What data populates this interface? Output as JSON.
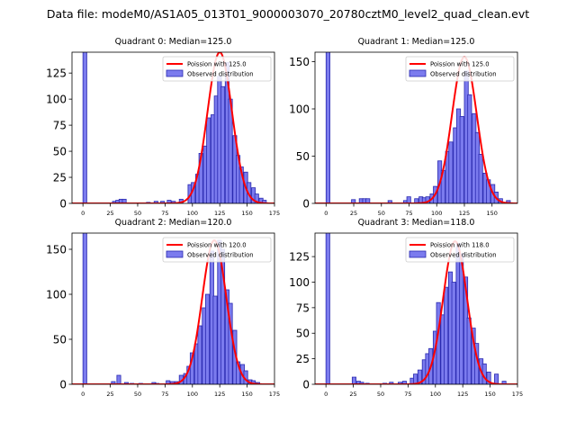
{
  "suptitle": "Data file: modeM0/AS1A05_013T01_9000003070_20780cztM0_level2_quad_clean.evt",
  "colors": {
    "line": "#ff0000",
    "bar_fill": "#7b7bee",
    "bar_edge": "#2a2ab0",
    "axis": "#000000"
  },
  "chart_data": [
    {
      "type": "bar",
      "title": "Quadrant 0: Median=125.0",
      "xlim": [
        -10,
        175
      ],
      "ylim": [
        0,
        145
      ],
      "xticks": [
        0,
        25,
        50,
        75,
        100,
        125,
        150,
        175
      ],
      "yticks": [
        0,
        25,
        50,
        75,
        100,
        125
      ],
      "bin_width": 3.5,
      "legend": [
        "Poission with 125.0",
        "Observed distribution"
      ],
      "legend_loc": "upper right",
      "mu": 125,
      "peak": 145,
      "bars": [
        [
          0,
          148
        ],
        [
          27,
          2
        ],
        [
          30,
          3
        ],
        [
          33,
          4
        ],
        [
          36,
          4
        ],
        [
          58,
          1
        ],
        [
          65,
          2
        ],
        [
          71,
          2
        ],
        [
          77,
          3
        ],
        [
          81,
          2
        ],
        [
          88,
          4
        ],
        [
          96,
          18
        ],
        [
          99,
          20
        ],
        [
          103,
          28
        ],
        [
          106,
          48
        ],
        [
          110,
          55
        ],
        [
          113,
          82
        ],
        [
          117,
          85
        ],
        [
          120,
          103
        ],
        [
          123,
          122
        ],
        [
          126,
          112
        ],
        [
          130,
          135
        ],
        [
          133,
          100
        ],
        [
          137,
          65
        ],
        [
          140,
          46
        ],
        [
          143,
          35
        ],
        [
          147,
          30
        ],
        [
          150,
          20
        ],
        [
          154,
          15
        ],
        [
          157,
          9
        ],
        [
          161,
          5
        ],
        [
          164,
          3
        ]
      ]
    },
    {
      "type": "bar",
      "title": "Quadrant 1: Median=125.0",
      "xlim": [
        -10,
        173
      ],
      "ylim": [
        0,
        160
      ],
      "xticks": [
        0,
        25,
        50,
        75,
        100,
        125,
        150
      ],
      "yticks": [
        0,
        50,
        100,
        150
      ],
      "bin_width": 3.5,
      "legend": [
        "Poission with 125.0",
        "Observed distribution"
      ],
      "legend_loc": "upper right",
      "mu": 125,
      "peak": 155,
      "bars": [
        [
          0,
          162
        ],
        [
          23,
          4
        ],
        [
          30,
          5
        ],
        [
          33,
          5
        ],
        [
          36,
          5
        ],
        [
          56,
          3
        ],
        [
          70,
          3
        ],
        [
          73,
          7
        ],
        [
          80,
          5
        ],
        [
          84,
          7
        ],
        [
          87,
          6
        ],
        [
          90,
          7
        ],
        [
          94,
          10
        ],
        [
          97,
          18
        ],
        [
          101,
          45
        ],
        [
          104,
          35
        ],
        [
          108,
          55
        ],
        [
          111,
          65
        ],
        [
          115,
          80
        ],
        [
          118,
          100
        ],
        [
          121,
          92
        ],
        [
          125,
          140
        ],
        [
          128,
          115
        ],
        [
          132,
          95
        ],
        [
          135,
          75
        ],
        [
          138,
          52
        ],
        [
          142,
          32
        ],
        [
          145,
          25
        ],
        [
          149,
          20
        ],
        [
          152,
          12
        ],
        [
          156,
          5
        ],
        [
          163,
          3
        ]
      ]
    },
    {
      "type": "bar",
      "title": "Quadrant 2: Median=120.0",
      "xlim": [
        -10,
        175
      ],
      "ylim": [
        0,
        168
      ],
      "xticks": [
        0,
        25,
        50,
        75,
        100,
        125,
        150,
        175
      ],
      "yticks": [
        0,
        50,
        100,
        150
      ],
      "bin_width": 3.5,
      "legend": [
        "Poission with 120.0",
        "Observed distribution"
      ],
      "legend_loc": "upper right",
      "mu": 120,
      "peak": 160,
      "bars": [
        [
          0,
          170
        ],
        [
          26,
          3
        ],
        [
          31,
          10
        ],
        [
          38,
          2
        ],
        [
          43,
          1
        ],
        [
          51,
          1
        ],
        [
          63,
          2
        ],
        [
          66,
          1
        ],
        [
          76,
          4
        ],
        [
          80,
          3
        ],
        [
          84,
          3
        ],
        [
          88,
          10
        ],
        [
          92,
          12
        ],
        [
          95,
          20
        ],
        [
          98,
          35
        ],
        [
          102,
          45
        ],
        [
          105,
          65
        ],
        [
          109,
          85
        ],
        [
          112,
          100
        ],
        [
          116,
          148
        ],
        [
          119,
          98
        ],
        [
          123,
          160
        ],
        [
          126,
          150
        ],
        [
          130,
          105
        ],
        [
          133,
          90
        ],
        [
          137,
          60
        ],
        [
          140,
          25
        ],
        [
          144,
          22
        ],
        [
          147,
          15
        ],
        [
          151,
          5
        ],
        [
          154,
          4
        ],
        [
          158,
          2
        ]
      ]
    },
    {
      "type": "bar",
      "title": "Quadrant 3: Median=118.0",
      "xlim": [
        -10,
        175
      ],
      "ylim": [
        0,
        148
      ],
      "xticks": [
        0,
        25,
        50,
        75,
        100,
        125,
        150,
        175
      ],
      "yticks": [
        0,
        25,
        50,
        75,
        100,
        125
      ],
      "bin_width": 3.5,
      "legend": [
        "Poission with 118.0",
        "Observed distribution"
      ],
      "legend_loc": "upper right",
      "mu": 118,
      "peak": 140,
      "bars": [
        [
          0,
          150
        ],
        [
          24,
          7
        ],
        [
          28,
          3
        ],
        [
          31,
          2
        ],
        [
          36,
          1
        ],
        [
          52,
          1
        ],
        [
          58,
          2
        ],
        [
          66,
          2
        ],
        [
          70,
          3
        ],
        [
          77,
          6
        ],
        [
          80,
          10
        ],
        [
          84,
          14
        ],
        [
          88,
          24
        ],
        [
          91,
          30
        ],
        [
          94,
          35
        ],
        [
          98,
          52
        ],
        [
          101,
          80
        ],
        [
          105,
          68
        ],
        [
          108,
          95
        ],
        [
          112,
          110
        ],
        [
          115,
          100
        ],
        [
          119,
          138
        ],
        [
          122,
          128
        ],
        [
          126,
          105
        ],
        [
          129,
          65
        ],
        [
          133,
          55
        ],
        [
          136,
          40
        ],
        [
          140,
          25
        ],
        [
          143,
          20
        ],
        [
          147,
          12
        ],
        [
          154,
          10
        ],
        [
          161,
          3
        ]
      ]
    }
  ]
}
